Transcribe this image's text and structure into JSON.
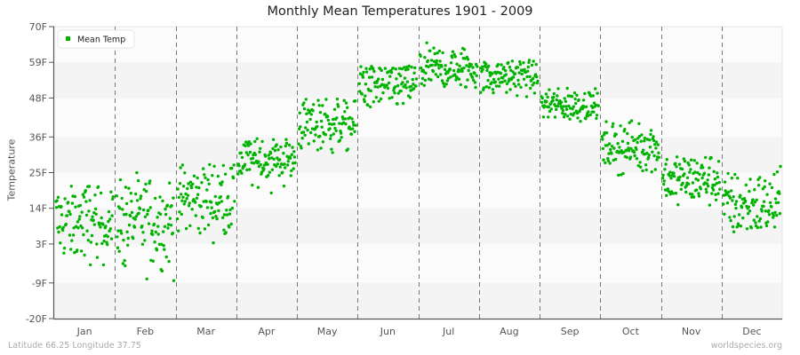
{
  "title": "Monthly Mean Temperatures 1901 - 2009",
  "ylabel": "Temperature",
  "footer": {
    "location": "Latitude 66.25 Longitude 37.75",
    "source": "worldspecies.org"
  },
  "legend": {
    "label": "Mean Temp",
    "color": "#00b300"
  },
  "colors": {
    "point": "#00b300",
    "band_light": "#fbfbfb",
    "band_dark": "#f4f4f4",
    "axis": "#555555",
    "divider": "#777777"
  },
  "chart_data": {
    "type": "scatter",
    "title": "Monthly Mean Temperatures 1901 - 2009",
    "xlabel": "",
    "ylabel": "Temperature",
    "ylim": [
      -20,
      70
    ],
    "yticks": [
      "70F",
      "59F",
      "48F",
      "36F",
      "25F",
      "14F",
      "3F",
      "-9F",
      "-20F"
    ],
    "ytick_values": [
      70,
      59,
      48,
      36,
      25,
      14,
      3,
      -9,
      -20
    ],
    "categories": [
      "Jan",
      "Feb",
      "Mar",
      "Apr",
      "May",
      "Jun",
      "Jul",
      "Aug",
      "Sep",
      "Oct",
      "Nov",
      "Dec"
    ],
    "years": [
      1901,
      2009
    ],
    "points_per_month": 109,
    "legend": [
      "Mean Temp"
    ],
    "legend_position": "top-left",
    "grid": "alternating horizontal bands, dashed vertical month dividers",
    "series": [
      {
        "name": "Mean Temp",
        "monthly_center": [
          10,
          10,
          17,
          29,
          40,
          52,
          57,
          55,
          46,
          33,
          23,
          15
        ],
        "monthly_spread": [
          6,
          7,
          6,
          4,
          4,
          4,
          3.5,
          3,
          2.5,
          3.5,
          4,
          5
        ],
        "monthly_min": [
          -6,
          -10,
          3,
          18,
          31,
          45,
          51,
          48,
          39,
          24,
          14,
          -1
        ],
        "monthly_max": [
          22,
          25,
          28,
          36,
          48,
          58,
          65,
          60,
          51,
          42,
          30,
          27
        ]
      }
    ]
  }
}
